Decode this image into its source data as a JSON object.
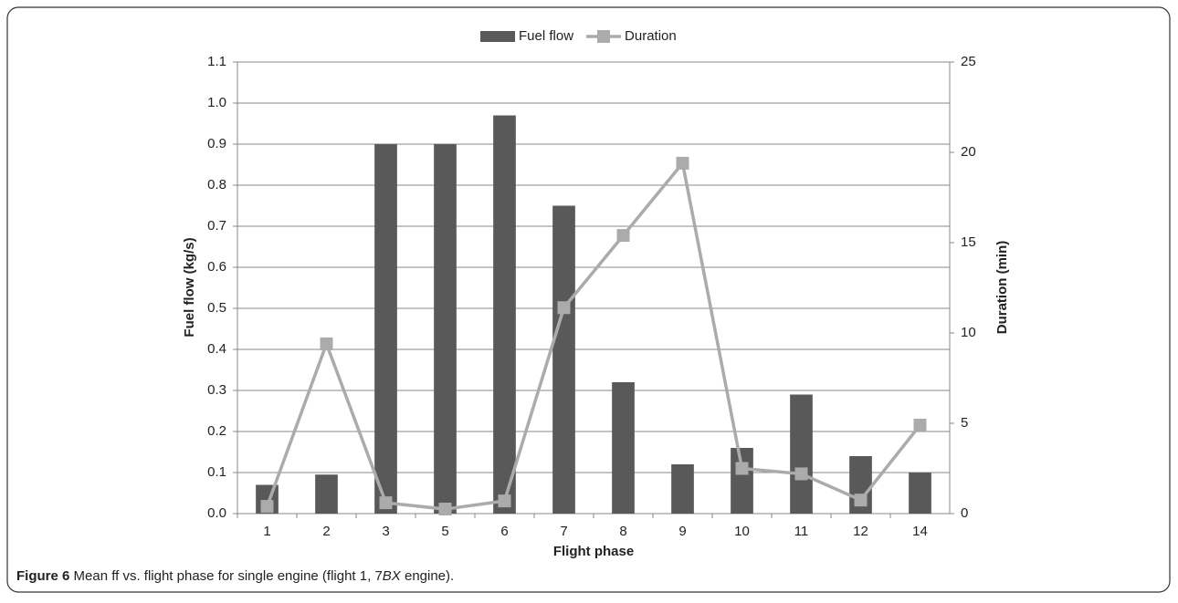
{
  "chart_data": {
    "type": "bar-line",
    "categories": [
      "1",
      "2",
      "3",
      "5",
      "6",
      "7",
      "8",
      "9",
      "10",
      "11",
      "12",
      "14"
    ],
    "series": [
      {
        "name": "Fuel flow",
        "color": "#595959",
        "type": "bar",
        "values": [
          0.07,
          0.095,
          0.9,
          0.9,
          0.97,
          0.75,
          0.32,
          0.12,
          0.16,
          0.29,
          0.14,
          0.1
        ]
      },
      {
        "name": "Duration",
        "color": "#ababab",
        "type": "line",
        "axis": "y2",
        "values": [
          0.4,
          9.4,
          0.6,
          0.25,
          0.7,
          11.4,
          15.4,
          19.4,
          2.5,
          2.2,
          0.75,
          4.9
        ]
      }
    ],
    "xlabel": "Flight phase",
    "ylabel": "Fuel flow (kg/s)",
    "y2label": "Duration (min)",
    "ylim": [
      0,
      1.1
    ],
    "yticks": [
      {
        "value": 0,
        "label": "0.0"
      },
      0.1,
      0.2,
      0.3,
      0.4,
      0.5,
      0.6,
      0.7,
      0.8,
      0.9,
      {
        "value": 1,
        "label": "1.0"
      },
      1.1
    ],
    "y2lim": [
      0,
      25
    ],
    "y2ticks": [
      0,
      5,
      10,
      15,
      20,
      25
    ],
    "grid": true,
    "legend": "top"
  },
  "caption": {
    "label": "Figure 6",
    "parts": [
      "Mean ff vs. flight phase for single engine (flight 1, 7",
      "BX",
      " engine)."
    ]
  }
}
